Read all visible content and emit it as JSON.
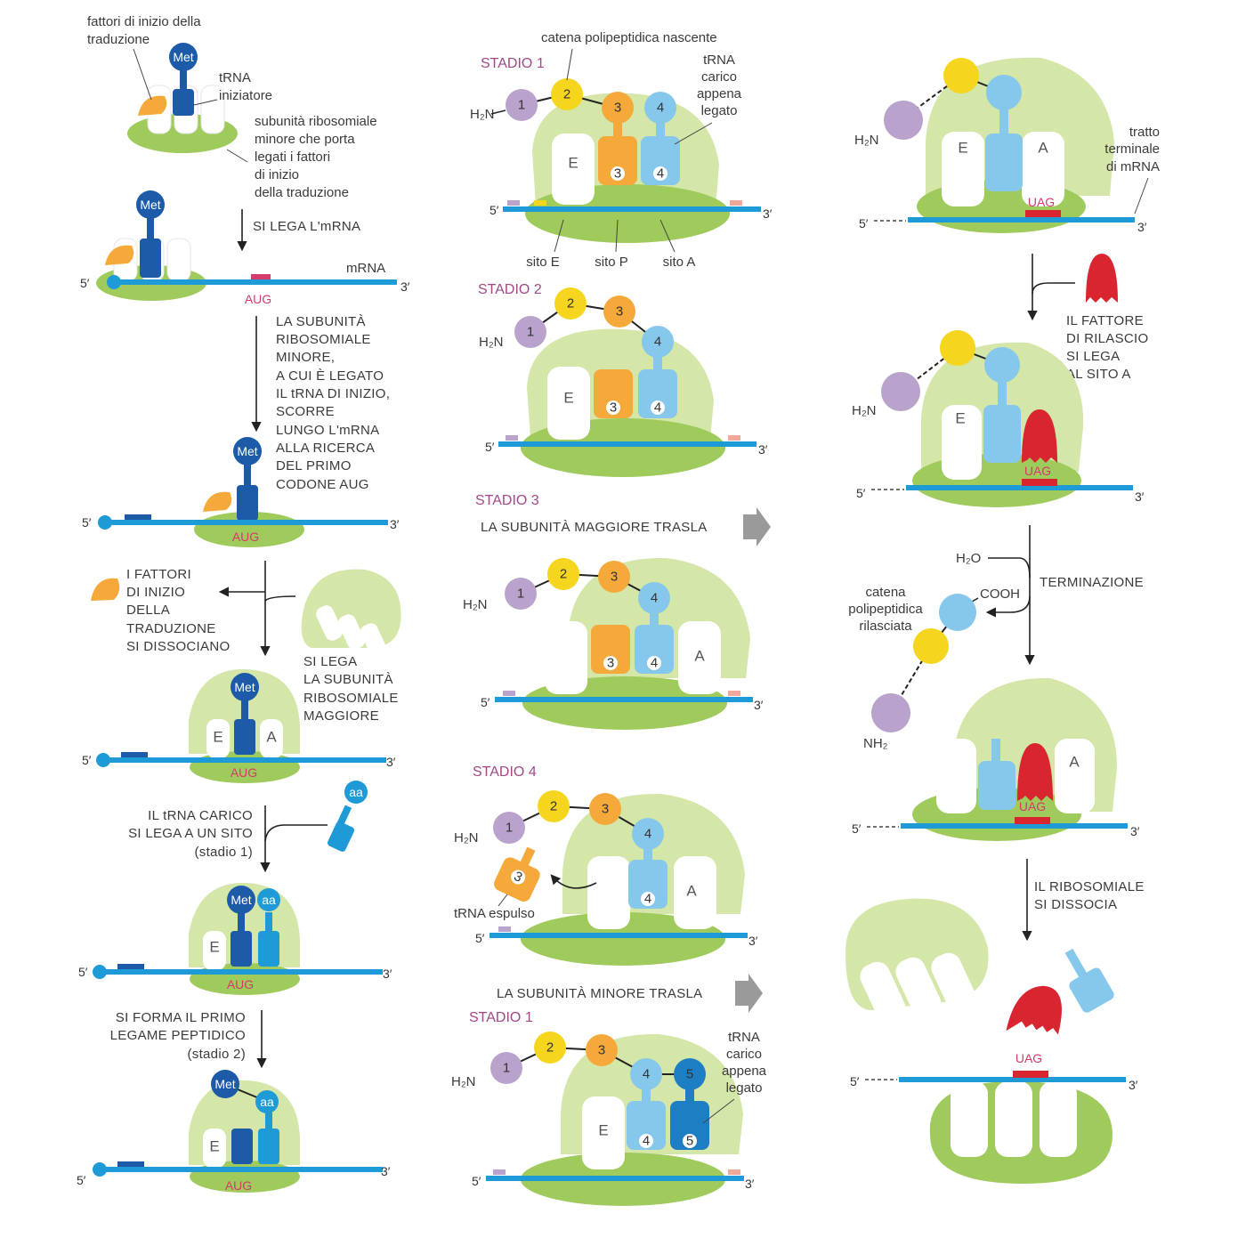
{
  "colors": {
    "large_subunit": "#d4e6a8",
    "small_subunit": "#9fcb5c",
    "mrna": "#1e9ad6",
    "trna_initiator": "#1d5aa8",
    "trna_light": "#6ac0ea",
    "trna_orange": "#f4a93a",
    "release_factor": "#d9252f",
    "aa_purple": "#b9a2cc",
    "aa_yellow": "#f5d51d",
    "aa_orange": "#f4a93a",
    "aa_blue": "#86c8ec",
    "stage_text": "#a2488a",
    "codon_text": "#d43a6a",
    "arrow_grey": "#9a9a9a"
  },
  "col1": {
    "label_initiation_factors": [
      "fattori di inizio della",
      "traduzione"
    ],
    "label_trna_initiator": [
      "tRNA",
      "iniziatore"
    ],
    "label_small_subunit": [
      "subunità ribosomiale",
      "minore che porta",
      "legati i fattori",
      "di inizio",
      "della traduzione"
    ],
    "step_binds_mrna": "SI LEGA L'mRNA",
    "label_mrna": "mRNA",
    "codon_aug": "AUG",
    "step_scan": [
      "LA SUBUNITÀ",
      "RIBOSOMIALE",
      "MINORE,",
      "A CUI È LEGATO",
      "IL tRNA DI INIZIO,",
      "SCORRE",
      "LUNGO L'mRNA",
      "ALLA RICERCA",
      "DEL PRIMO",
      "CODONE AUG"
    ],
    "step_factors_dissociate": [
      "I FATTORI",
      "DI INIZIO",
      "DELLA",
      "TRADUZIONE",
      "SI DISSOCIANO"
    ],
    "step_large_binds": [
      "SI LEGA",
      "LA SUBUNITÀ",
      "RIBOSOMIALE",
      "MAGGIORE"
    ],
    "step_trna_binds": [
      "IL tRNA CARICO",
      "SI LEGA A UN SITO",
      "(stadio 1)"
    ],
    "step_peptide_bond": [
      "SI FORMA IL PRIMO",
      "LEGAME PEPTIDICO",
      "(stadio 2)"
    ],
    "met": "Met",
    "aa": "aa",
    "site_e": "E",
    "site_a": "A"
  },
  "col2": {
    "stage1": "STADIO 1",
    "label_nascent_chain": "catena polipeptidica nascente",
    "label_trna_loaded": [
      "tRNA",
      "carico",
      "appena",
      "legato"
    ],
    "label_site_e": "sito E",
    "label_site_p": "sito P",
    "label_site_a": "sito A",
    "stage2": "STADIO 2",
    "stage3": "STADIO 3",
    "step_large_translocates": "LA SUBUNITÀ MAGGIORE TRASLA",
    "stage4": "STADIO 4",
    "label_trna_expelled": "tRNA espulso",
    "step_small_translocates": "LA SUBUNITÀ MINORE TRASLA",
    "stage1b": "STADIO 1",
    "h2n": "H₂N",
    "n1": "1",
    "n2": "2",
    "n3": "3",
    "n4": "4",
    "n5": "5"
  },
  "col3": {
    "label_terminal": [
      "tratto",
      "terminale",
      "di mRNA"
    ],
    "codon_uag": "UAG",
    "step_release_factor": [
      "IL FATTORE",
      "DI RILASCIO",
      "SI LEGA",
      "AL SITO A"
    ],
    "h2o": "H₂O",
    "cooh": "COOH",
    "step_termination": "TERMINAZIONE",
    "label_released_chain": [
      "catena",
      "polipeptidica",
      "rilasciata"
    ],
    "nh2": "NH₂",
    "step_dissociate": [
      "IL RIBOSOMIALE",
      "SI DISSOCIA"
    ]
  },
  "ends": {
    "five": "5′",
    "three": "3′"
  }
}
